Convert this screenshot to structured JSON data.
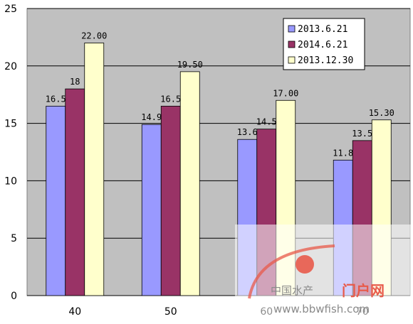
{
  "chart_data": {
    "type": "bar",
    "categories": [
      "40",
      "50",
      "60",
      "70"
    ],
    "series": [
      {
        "name": "2013.6.21",
        "values": [
          16.5,
          14.9,
          13.6,
          11.8
        ],
        "labels": [
          "16.5",
          "14.9",
          "13.6",
          "11.8"
        ],
        "color": "#9999ff"
      },
      {
        "name": "2014.6.21",
        "values": [
          18,
          16.5,
          14.5,
          13.5
        ],
        "labels": [
          "18",
          "16.5",
          "14.5",
          "13.5"
        ],
        "color": "#993366"
      },
      {
        "name": "2013.12.30",
        "values": [
          22.0,
          19.5,
          17.0,
          15.3
        ],
        "labels": [
          "22.00",
          "19.50",
          "17.00",
          "15.30"
        ],
        "color": "#ffffcc"
      }
    ],
    "yticks": [
      "0",
      "5",
      "10",
      "15",
      "20",
      "25"
    ],
    "ylim": [
      0,
      25
    ],
    "grid": true,
    "legend_position": "top-right",
    "plot_background": "#c0c0c0"
  },
  "watermark": {
    "text_cn": "中国水产",
    "text_brand": "门户网",
    "url": "www.bbwfish.com"
  }
}
